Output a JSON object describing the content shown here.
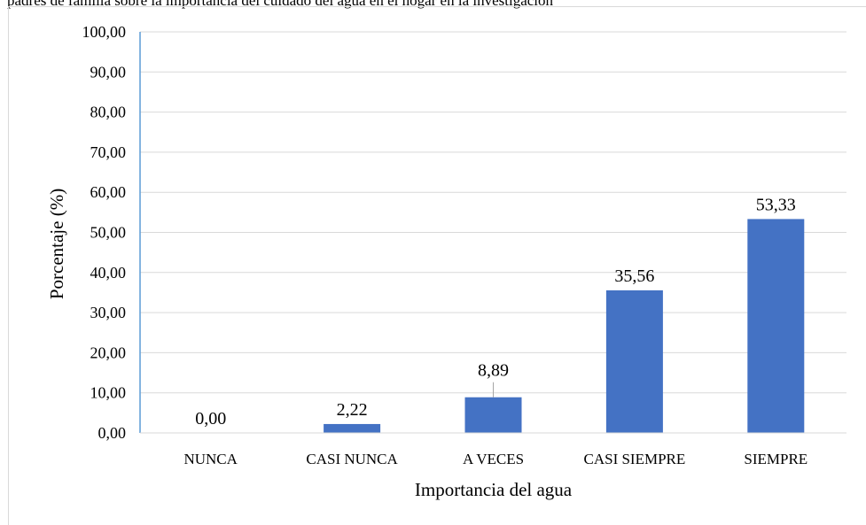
{
  "caption": "padres de familia sobre la importancia del cuidado del agua en el hogar en la investigación",
  "chart_data": {
    "type": "bar",
    "title": "",
    "xlabel": "Importancia del agua",
    "ylabel": "Porcentaje (%)",
    "categories": [
      "NUNCA",
      "CASI NUNCA",
      "A VECES",
      "CASI SIEMPRE",
      "SIEMPRE"
    ],
    "values": [
      0.0,
      2.22,
      8.89,
      35.56,
      53.33
    ],
    "value_labels": [
      "0,00",
      "2,22",
      "8,89",
      "35,56",
      "53,33"
    ],
    "ylim": [
      0,
      100
    ],
    "yticks": [
      0,
      10,
      20,
      30,
      40,
      50,
      60,
      70,
      80,
      90,
      100
    ],
    "ytick_labels": [
      "0,00",
      "10,00",
      "20,00",
      "30,00",
      "40,00",
      "50,00",
      "60,00",
      "70,00",
      "80,00",
      "90,00",
      "100,00"
    ],
    "grid": true,
    "legend": "none",
    "bar_color": "#4472c4",
    "grid_color": "#d9d9d9",
    "axis_color": "#5b9bd5"
  }
}
